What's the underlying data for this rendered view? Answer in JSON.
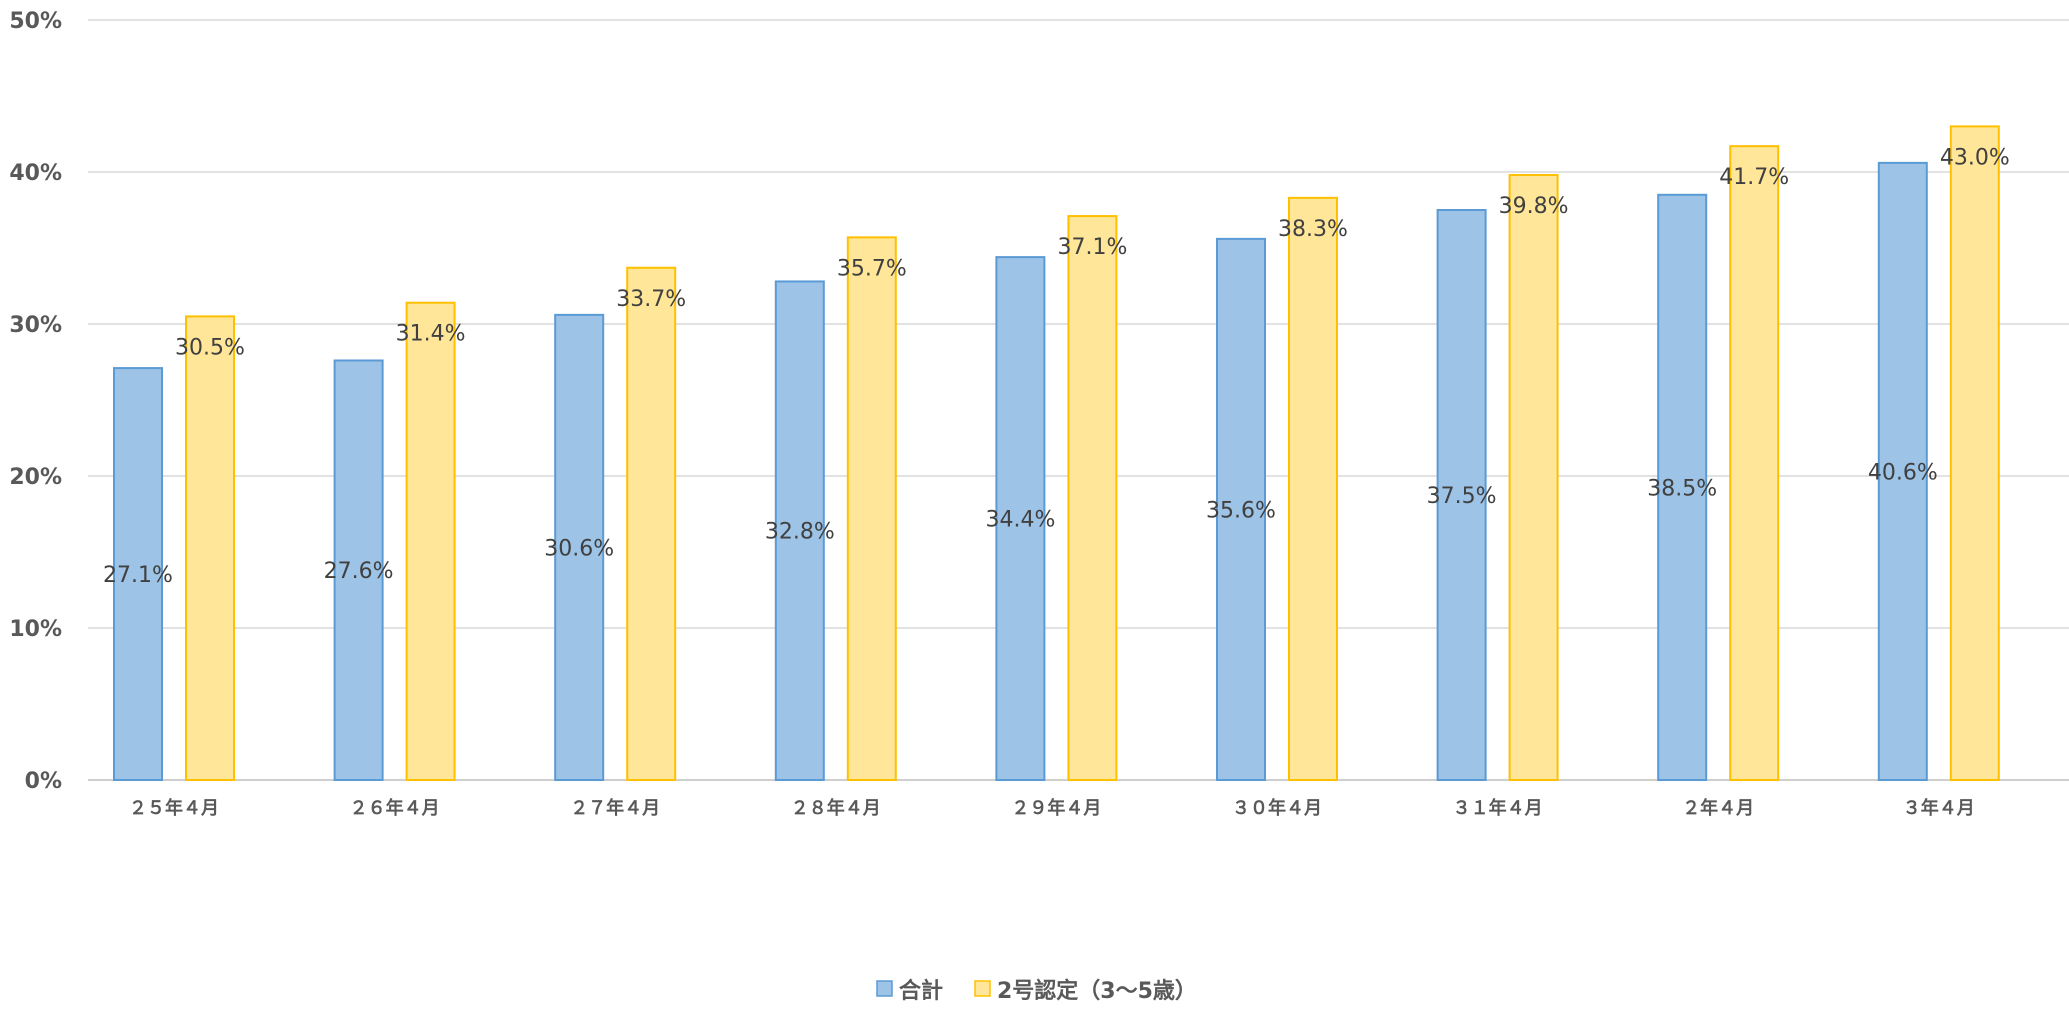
{
  "chart_data": {
    "type": "bar",
    "title": "",
    "xlabel": "",
    "ylabel": "",
    "ylim": [
      0,
      50
    ],
    "y_ticks": [
      "0%",
      "10%",
      "20%",
      "30%",
      "40%",
      "50%"
    ],
    "y_tick_values": [
      0,
      10,
      20,
      30,
      40,
      50
    ],
    "categories": [
      "２５年４月",
      "２６年４月",
      "２７年４月",
      "２８年４月",
      "２９年４月",
      "３０年４月",
      "３１年４月",
      "２年４月",
      "３年４月"
    ],
    "series": [
      {
        "name": "合計",
        "values": [
          27.1,
          27.6,
          30.6,
          32.8,
          34.4,
          35.6,
          37.5,
          38.5,
          40.6
        ],
        "labels": [
          "27.1%",
          "27.6%",
          "30.6%",
          "32.8%",
          "34.4%",
          "35.6%",
          "37.5%",
          "38.5%",
          "40.6%"
        ],
        "fill": "#9DC3E6",
        "stroke": "#5B9BD5",
        "label_position": "center"
      },
      {
        "name": "2号認定（3～5歳）",
        "values": [
          30.5,
          31.4,
          33.7,
          35.7,
          37.1,
          38.3,
          39.8,
          41.7,
          43.0
        ],
        "labels": [
          "30.5%",
          "31.4%",
          "33.7%",
          "35.7%",
          "37.1%",
          "38.3%",
          "39.8%",
          "41.7%",
          "43.0%"
        ],
        "fill": "#FFE699",
        "stroke": "#FFC000",
        "label_position": "inside-top"
      }
    ],
    "grid": true,
    "gridline_color": "#D9D9D9",
    "legend_position": "bottom"
  }
}
